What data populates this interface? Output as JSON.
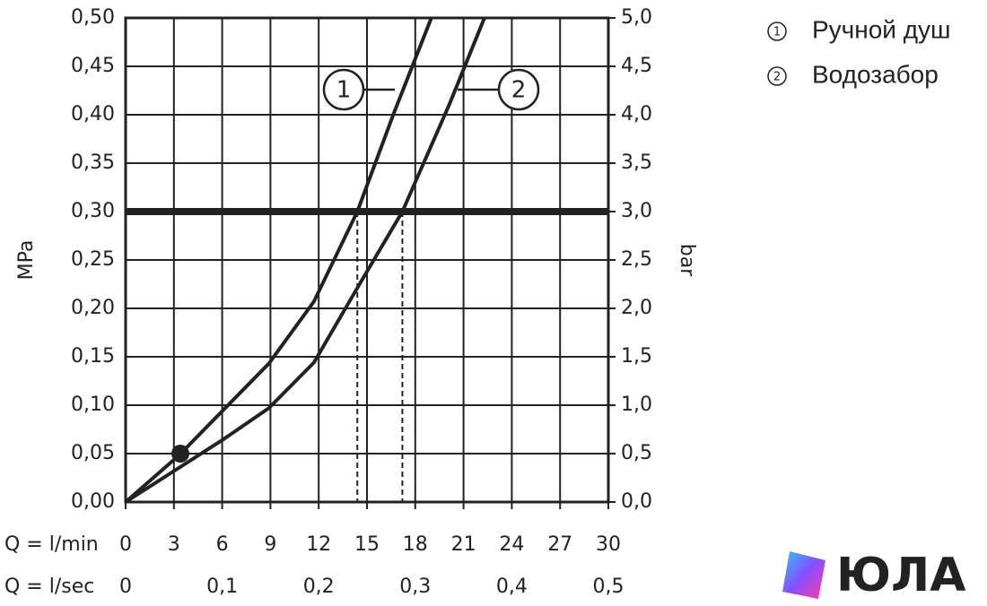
{
  "chart_data": {
    "type": "line",
    "xlabel": "Q = l/min",
    "x2label": "Q = l/sec",
    "ylabel": "MPa",
    "y2label": "bar",
    "xlim": [
      0,
      30
    ],
    "xticks": [
      0,
      3,
      6,
      9,
      12,
      15,
      18,
      21,
      24,
      27,
      30
    ],
    "x2lim": [
      0,
      0.5
    ],
    "x2ticks": [
      0,
      {
        "value": 0.1,
        "label": "0,1"
      },
      {
        "value": 0.2,
        "label": "0,2"
      },
      {
        "value": 0.3,
        "label": "0,3"
      },
      {
        "value": 0.4,
        "label": "0,4"
      },
      {
        "value": 0.5,
        "label": "0,5"
      }
    ],
    "ylim": [
      0,
      0.5
    ],
    "yticks": [
      {
        "value": 0,
        "label": "0,00"
      },
      {
        "value": 0.05,
        "label": "0,05"
      },
      {
        "value": 0.1,
        "label": "0,10"
      },
      {
        "value": 0.15,
        "label": "0,15"
      },
      {
        "value": 0.2,
        "label": "0,20"
      },
      {
        "value": 0.25,
        "label": "0,25"
      },
      {
        "value": 0.3,
        "label": "0,30"
      },
      {
        "value": 0.35,
        "label": "0,35"
      },
      {
        "value": 0.4,
        "label": "0,40"
      },
      {
        "value": 0.45,
        "label": "0,45"
      },
      {
        "value": 0.5,
        "label": "0,50"
      }
    ],
    "y2lim": [
      0,
      5
    ],
    "y2ticks": [
      {
        "value": 0,
        "label": "0,0"
      },
      {
        "value": 0.5,
        "label": "0,5"
      },
      {
        "value": 1,
        "label": "1,0"
      },
      {
        "value": 1.5,
        "label": "1,5"
      },
      {
        "value": 2,
        "label": "2,0"
      },
      {
        "value": 2.5,
        "label": "2,5"
      },
      {
        "value": 3,
        "label": "3,0"
      },
      {
        "value": 3.5,
        "label": "3,5"
      },
      {
        "value": 4,
        "label": "4,0"
      },
      {
        "value": 4.5,
        "label": "4,5"
      },
      {
        "value": 5,
        "label": "5,0"
      }
    ],
    "grid": true,
    "color": "#222222",
    "hline": 0.3,
    "drop_x": [
      14.4,
      17.2
    ],
    "marker": {
      "x": 3.4,
      "y": 0.05
    },
    "series": [
      {
        "name": "Ручной душ",
        "label": "1",
        "color": "#222222",
        "x": [
          0,
          3.3,
          8.9,
          11.7,
          14.4,
          16.7,
          19.0
        ],
        "values": [
          0,
          0.048,
          0.143,
          0.207,
          0.3,
          0.403,
          0.5
        ]
      },
      {
        "name": "Водозабор",
        "label": "2",
        "color": "#222222",
        "x": [
          0,
          6.1,
          8.9,
          11.7,
          14.5,
          17.2,
          20.1,
          22.3
        ],
        "values": [
          0,
          0.065,
          0.097,
          0.144,
          0.224,
          0.3,
          0.41,
          0.5
        ]
      }
    ],
    "watermark": "ЮЛА"
  }
}
